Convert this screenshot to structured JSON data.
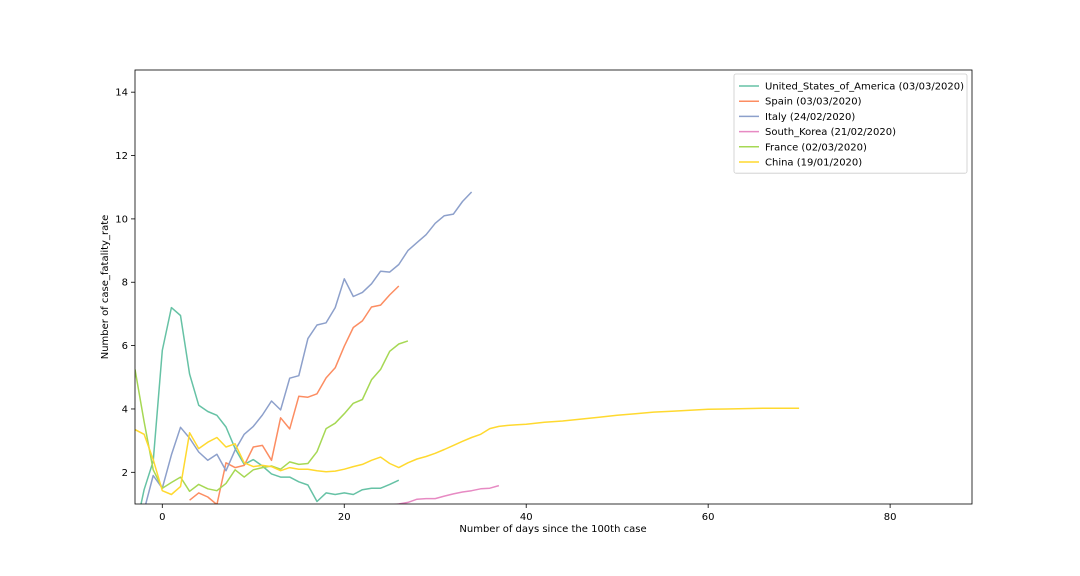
{
  "chart_data": {
    "type": "line",
    "title": "",
    "xlabel": "Number of days since the 100th case",
    "ylabel": "Number of case_fatality_rate",
    "xlim": [
      -3,
      89
    ],
    "ylim": [
      1.0,
      14.7
    ],
    "xticks": [
      0,
      20,
      40,
      60,
      80
    ],
    "yticks": [
      2,
      4,
      6,
      8,
      10,
      12,
      14
    ],
    "grid": false,
    "legend_position": "top-right",
    "series": [
      {
        "name": "United_States_of_America (03/03/2020)",
        "color": "#66c2a5",
        "x": [
          -3,
          -2,
          -1,
          0,
          1,
          2,
          3,
          4,
          5,
          6,
          7,
          8,
          9,
          10,
          11,
          12,
          13,
          14,
          15,
          16,
          17,
          18,
          19,
          20,
          21,
          22,
          23,
          24,
          25,
          26
        ],
        "y": [
          0.1,
          1.45,
          2.35,
          5.85,
          7.2,
          6.95,
          5.1,
          4.12,
          3.92,
          3.8,
          3.43,
          2.75,
          2.25,
          2.4,
          2.2,
          1.95,
          1.85,
          1.85,
          1.7,
          1.6,
          1.08,
          1.35,
          1.3,
          1.35,
          1.3,
          1.45,
          1.5,
          1.5,
          1.62,
          1.75
        ]
      },
      {
        "name": "Spain (03/03/2020)",
        "color": "#fc8d62",
        "x": [
          3,
          4,
          5,
          6,
          7,
          8,
          9,
          10,
          11,
          12,
          13,
          14,
          15,
          16,
          17,
          18,
          19,
          20,
          21,
          22,
          23,
          24,
          25,
          26
        ],
        "y": [
          1.12,
          1.35,
          1.22,
          0.98,
          2.3,
          2.15,
          2.22,
          2.8,
          2.85,
          2.38,
          3.72,
          3.37,
          4.4,
          4.37,
          4.48,
          4.98,
          5.3,
          5.98,
          6.57,
          6.78,
          7.22,
          7.28,
          7.6,
          7.88
        ]
      },
      {
        "name": "Italy (24/02/2020)",
        "color": "#8da0cb",
        "x": [
          -3,
          -2,
          -1,
          0,
          1,
          2,
          3,
          4,
          5,
          6,
          7,
          8,
          9,
          10,
          11,
          12,
          13,
          14,
          15,
          16,
          17,
          18,
          19,
          20,
          21,
          22,
          23,
          24,
          25,
          26,
          27,
          28,
          29,
          30,
          31,
          32,
          33,
          34
        ],
        "y": [
          0.3,
          0.8,
          1.9,
          1.5,
          2.55,
          3.42,
          3.08,
          2.64,
          2.38,
          2.57,
          2.05,
          2.7,
          3.2,
          3.45,
          3.81,
          4.25,
          3.97,
          4.97,
          5.05,
          6.22,
          6.65,
          6.72,
          7.2,
          8.11,
          7.55,
          7.68,
          7.95,
          8.35,
          8.32,
          8.56,
          9.0,
          9.25,
          9.5,
          9.86,
          10.1,
          10.15,
          10.55,
          10.85
        ]
      },
      {
        "name": "South_Korea (21/02/2020)",
        "color": "#e78ac3",
        "x": [
          25,
          26,
          27,
          28,
          29,
          30,
          31,
          32,
          33,
          34,
          35,
          36,
          37
        ],
        "y": [
          0.96,
          1.0,
          1.05,
          1.15,
          1.17,
          1.17,
          1.25,
          1.32,
          1.38,
          1.42,
          1.48,
          1.5,
          1.58
        ]
      },
      {
        "name": "France (02/03/2020)",
        "color": "#a6d854",
        "x": [
          -3,
          -2,
          -1,
          0,
          1,
          2,
          3,
          4,
          5,
          6,
          7,
          8,
          9,
          10,
          11,
          12,
          13,
          14,
          15,
          16,
          17,
          18,
          19,
          20,
          21,
          22,
          23,
          24,
          25,
          26,
          27
        ],
        "y": [
          5.25,
          3.6,
          2.08,
          1.5,
          1.68,
          1.85,
          1.4,
          1.62,
          1.48,
          1.42,
          1.65,
          2.08,
          1.85,
          2.08,
          2.15,
          2.2,
          2.1,
          2.33,
          2.25,
          2.28,
          2.65,
          3.38,
          3.55,
          3.85,
          4.18,
          4.3,
          4.92,
          5.25,
          5.82,
          6.05,
          6.15
        ]
      },
      {
        "name": "China (19/01/2020)",
        "color": "#ffd92f",
        "x": [
          -3,
          -2,
          -1,
          0,
          1,
          2,
          3,
          4,
          5,
          6,
          7,
          8,
          9,
          10,
          11,
          12,
          13,
          14,
          15,
          16,
          17,
          18,
          19,
          20,
          21,
          22,
          23,
          24,
          25,
          26,
          27,
          28,
          29,
          30,
          31,
          32,
          33,
          34,
          35,
          36,
          37,
          38,
          39,
          40,
          42,
          44,
          46,
          48,
          50,
          52,
          54,
          56,
          58,
          60,
          62,
          64,
          66,
          68,
          70
        ],
        "y": [
          3.35,
          3.2,
          2.4,
          1.42,
          1.3,
          1.55,
          3.25,
          2.75,
          2.95,
          3.1,
          2.8,
          2.9,
          2.3,
          2.18,
          2.22,
          2.18,
          2.05,
          2.15,
          2.1,
          2.1,
          2.05,
          2.02,
          2.04,
          2.1,
          2.18,
          2.25,
          2.38,
          2.48,
          2.28,
          2.15,
          2.3,
          2.42,
          2.5,
          2.6,
          2.72,
          2.85,
          2.98,
          3.1,
          3.2,
          3.38,
          3.45,
          3.48,
          3.5,
          3.52,
          3.58,
          3.62,
          3.68,
          3.74,
          3.8,
          3.85,
          3.9,
          3.93,
          3.96,
          3.99,
          4.0,
          4.01,
          4.02,
          4.02,
          4.02
        ]
      }
    ]
  }
}
